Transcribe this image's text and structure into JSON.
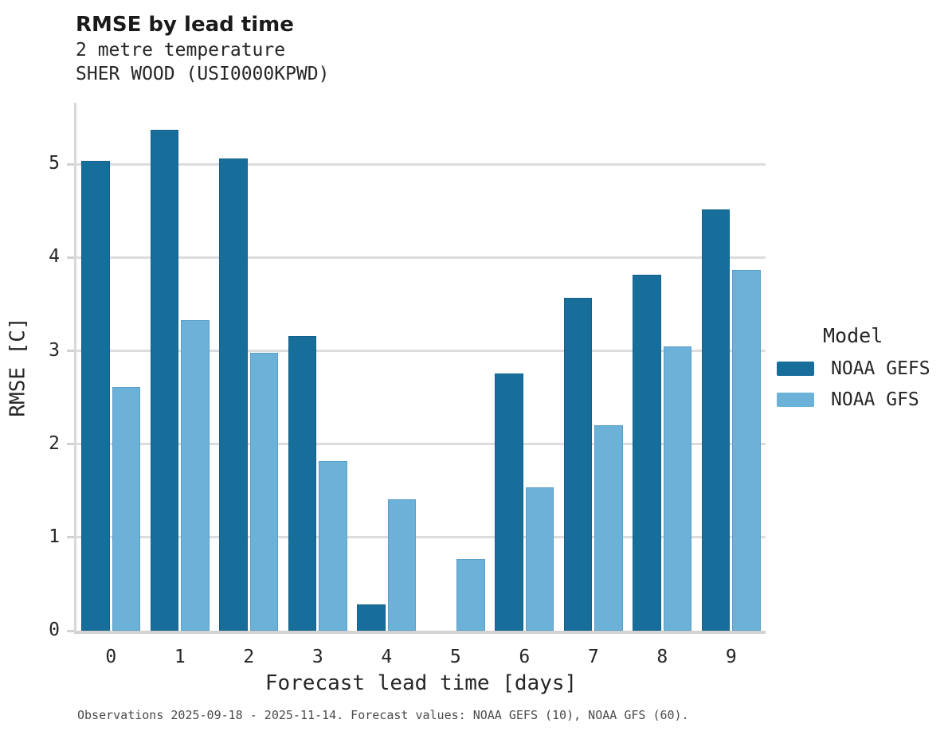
{
  "header": {
    "title": "RMSE by lead time",
    "subtitle1": "2 metre temperature",
    "subtitle2": "SHER WOOD (USI0000KPWD)"
  },
  "legend": {
    "title": "Model",
    "items": [
      {
        "label": "NOAA GEFS",
        "color": "#176e9b"
      },
      {
        "label": "NOAA GFS",
        "color": "#6cb1d8"
      }
    ]
  },
  "footer": {
    "note": "Observations 2025-09-18 - 2025-11-14. Forecast values: NOAA GEFS (10), NOAA GFS (60)."
  },
  "chart_data": {
    "type": "bar",
    "title": "RMSE by lead time",
    "subtitle": [
      "2 metre temperature",
      "SHER WOOD (USI0000KPWD)"
    ],
    "categories": [
      "0",
      "1",
      "2",
      "3",
      "4",
      "5",
      "6",
      "7",
      "8",
      "9"
    ],
    "series": [
      {
        "name": "NOAA GEFS",
        "color": "#176e9b",
        "values": [
          5.04,
          5.37,
          5.06,
          3.16,
          0.28,
          null,
          2.76,
          3.57,
          3.82,
          4.52
        ]
      },
      {
        "name": "NOAA GFS",
        "color": "#6cb1d8",
        "values": [
          2.61,
          3.33,
          2.98,
          1.82,
          1.41,
          0.77,
          1.54,
          2.2,
          3.05,
          3.87
        ]
      }
    ],
    "xlabel": "Forecast lead time [days]",
    "ylabel": "RMSE [C]",
    "ylim": [
      0,
      5.66
    ],
    "yticks": [
      0,
      1,
      2,
      3,
      4,
      5
    ],
    "grid": true,
    "legend_position": "right",
    "note": "Observations 2025-09-18 - 2025-11-14. Forecast values: NOAA GEFS (10), NOAA GFS (60)."
  }
}
